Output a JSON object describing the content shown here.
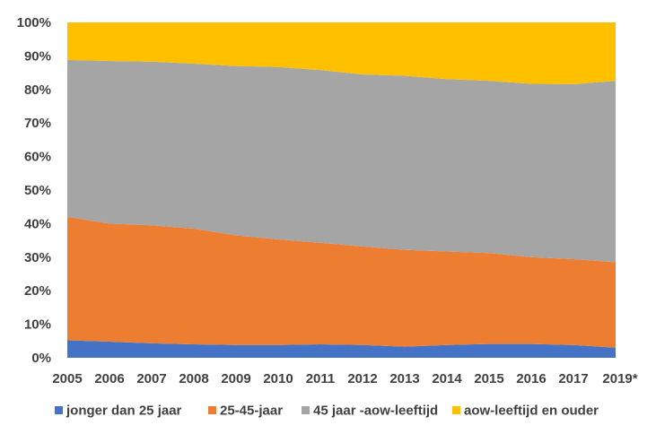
{
  "chart_data": {
    "type": "area",
    "stacked": true,
    "percent": true,
    "x": [
      "2005",
      "2006",
      "2007",
      "2008",
      "2009",
      "2010",
      "2011",
      "2012",
      "2013",
      "2014",
      "2015",
      "2016",
      "2017",
      "2019*"
    ],
    "series": [
      {
        "name": "jonger dan 25 jaar",
        "color": "#4472C4",
        "values": [
          5.2,
          4.8,
          4.3,
          4.0,
          3.8,
          3.8,
          4.0,
          3.8,
          3.3,
          3.8,
          4.1,
          4.1,
          3.8,
          3.0
        ]
      },
      {
        "name": "25-45-jaar",
        "color": "#ED7D31",
        "values": [
          36.8,
          35.2,
          35.2,
          34.5,
          32.7,
          31.5,
          30.3,
          29.4,
          28.9,
          27.9,
          27.1,
          25.9,
          25.6,
          25.5
        ]
      },
      {
        "name": "45 jaar -aow-leeftijd",
        "color": "#A5A5A5",
        "values": [
          46.8,
          48.5,
          48.8,
          49.2,
          50.5,
          51.4,
          51.5,
          51.3,
          51.9,
          51.4,
          51.4,
          51.7,
          52.2,
          54.1
        ]
      },
      {
        "name": "aow-leeftijd en ouder",
        "color": "#FFC000",
        "values": [
          11.2,
          11.5,
          11.7,
          12.3,
          13.0,
          13.3,
          14.2,
          15.5,
          15.9,
          16.9,
          17.4,
          18.3,
          18.4,
          17.4
        ]
      }
    ],
    "yticks": [
      "0%",
      "10%",
      "20%",
      "30%",
      "40%",
      "50%",
      "60%",
      "70%",
      "80%",
      "90%",
      "100%"
    ],
    "ylim": [
      0,
      100
    ],
    "grid": false,
    "legend": "bottom"
  }
}
